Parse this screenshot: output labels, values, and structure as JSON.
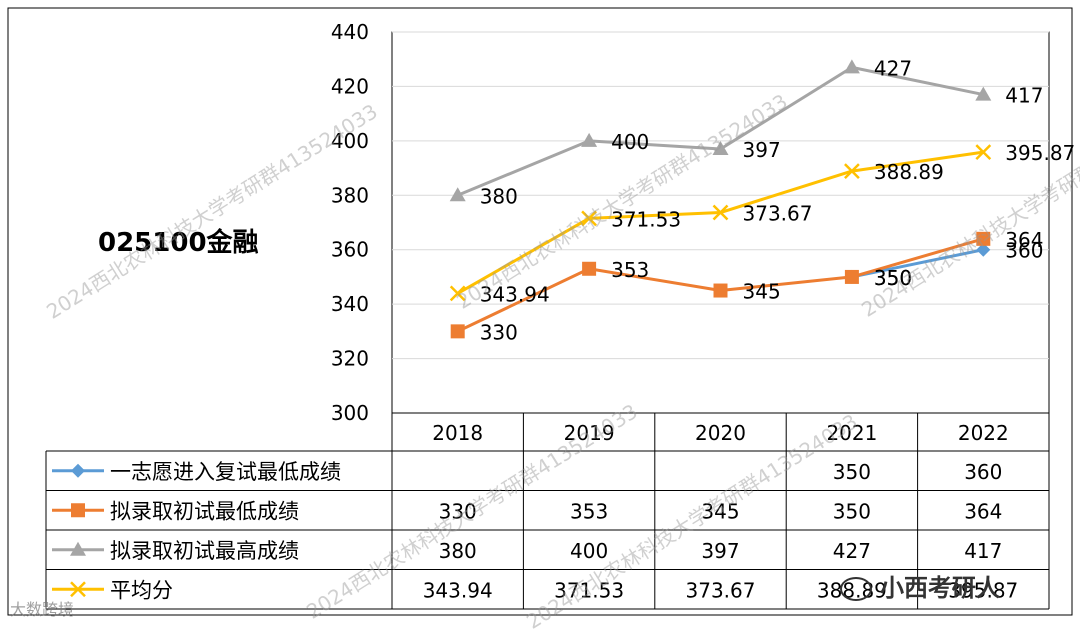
{
  "side_title": "025100金融",
  "watermark": "2024西北农林科技大学考研群413524033",
  "brand": "小西考研人",
  "corner_text": "大数跨境",
  "chart_data": {
    "type": "line",
    "title": "",
    "xlabel": "",
    "ylabel": "",
    "categories": [
      "2018",
      "2019",
      "2020",
      "2021",
      "2022"
    ],
    "ylim": [
      300,
      440
    ],
    "yticks": [
      300,
      320,
      340,
      360,
      380,
      400,
      420,
      440
    ],
    "grid": true,
    "series": [
      {
        "name": "一志愿进入复试最低成绩",
        "color": "#5b9bd5",
        "marker": "diamond",
        "values": [
          null,
          null,
          null,
          350,
          360
        ],
        "labels": [
          "",
          "",
          "",
          "350",
          "360"
        ]
      },
      {
        "name": "拟录取初试最低成绩",
        "color": "#ed7d31",
        "marker": "square",
        "values": [
          330,
          353,
          345,
          350,
          364
        ],
        "labels": [
          "330",
          "353",
          "345",
          "350",
          "364"
        ]
      },
      {
        "name": "拟录取初试最高成绩",
        "color": "#a5a5a5",
        "marker": "triangle",
        "values": [
          380,
          400,
          397,
          427,
          417
        ],
        "labels": [
          "380",
          "400",
          "397",
          "427",
          "417"
        ]
      },
      {
        "name": "平均分",
        "color": "#ffc000",
        "marker": "x",
        "values": [
          343.94,
          371.53,
          373.67,
          388.89,
          395.87
        ],
        "labels": [
          "343.94",
          "371.53",
          "373.67",
          "388.89",
          "395.87"
        ]
      }
    ],
    "data_table": {
      "rows": [
        [
          "",
          "",
          "",
          "350",
          "360"
        ],
        [
          "330",
          "353",
          "345",
          "350",
          "364"
        ],
        [
          "380",
          "400",
          "397",
          "427",
          "417"
        ],
        [
          "343.94",
          "371.53",
          "373.67",
          "388.89",
          "395.87"
        ]
      ]
    }
  }
}
